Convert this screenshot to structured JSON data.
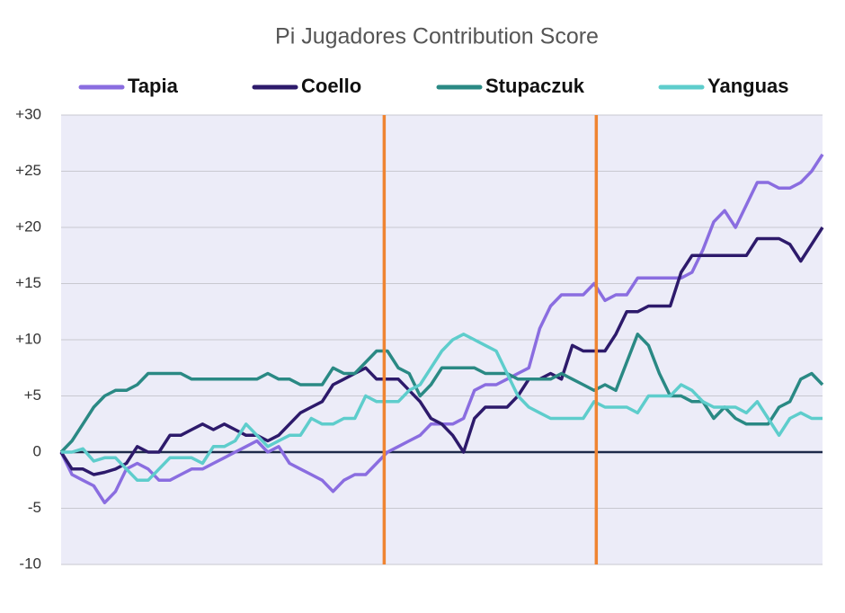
{
  "chart_data": {
    "type": "line",
    "title": "Pi Jugadores Contribution Score",
    "x": [
      0,
      1,
      2,
      3,
      4,
      5,
      6,
      7,
      8,
      9,
      10,
      11,
      12,
      13,
      14,
      15,
      16,
      17,
      18,
      19,
      20,
      21,
      22,
      23,
      24,
      25,
      26,
      27,
      28,
      29,
      30,
      31,
      32,
      33,
      34,
      35,
      36,
      37,
      38,
      39,
      40,
      41,
      42,
      43,
      44,
      45,
      46,
      47,
      48,
      49,
      50,
      51,
      52,
      53,
      54,
      55,
      56,
      57,
      58,
      59,
      60,
      61,
      62,
      63,
      64,
      65,
      66,
      67,
      68,
      69,
      70
    ],
    "xlim": [
      0,
      70
    ],
    "ylim": [
      -10,
      30
    ],
    "yticks": [
      {
        "value": -10,
        "label": "-10"
      },
      {
        "value": -5,
        "label": "-5"
      },
      0,
      {
        "value": 5,
        "label": "+5"
      },
      {
        "value": 10,
        "label": "+10"
      },
      {
        "value": 15,
        "label": "+15"
      },
      {
        "value": 20,
        "label": "+20"
      },
      {
        "value": 25,
        "label": "+25"
      },
      {
        "value": 30,
        "label": "+30"
      }
    ],
    "grid": true,
    "vlines": [
      29.7,
      49.2
    ],
    "vline_color": "#ef8432",
    "series": [
      {
        "name": "Tapia",
        "color": "#8a6de0",
        "values": [
          0,
          -2,
          -2.5,
          -3,
          -4.5,
          -3.5,
          -1.5,
          -1,
          -1.5,
          -2.5,
          -2.5,
          -2,
          -1.5,
          -1.5,
          -1,
          -0.5,
          0,
          0.5,
          1,
          0,
          0.5,
          -1,
          -1.5,
          -2,
          -2.5,
          -3.5,
          -2.5,
          -2,
          -2,
          -1,
          0,
          0.5,
          1,
          1.5,
          2.5,
          2.5,
          2.5,
          3,
          5.5,
          6,
          6,
          6.5,
          7,
          7.5,
          11,
          13,
          14,
          14,
          14,
          15,
          13.5,
          14,
          14,
          15.5,
          15.5,
          15.5,
          15.5,
          15.5,
          16,
          18,
          20.5,
          21.5,
          20,
          22,
          24,
          24,
          23.5,
          23.5,
          24,
          25,
          26.5
        ]
      },
      {
        "name": "Coello",
        "color": "#2d1a6b",
        "values": [
          0,
          -1.5,
          -1.5,
          -2,
          -1.8,
          -1.5,
          -1,
          0.5,
          0,
          0,
          1.5,
          1.5,
          2,
          2.5,
          2,
          2.5,
          2,
          1.5,
          1.5,
          1,
          1.5,
          2.5,
          3.5,
          4,
          4.5,
          6,
          6.5,
          7,
          7.5,
          6.5,
          6.5,
          6.5,
          5.5,
          4.5,
          3,
          2.5,
          1.5,
          0,
          3,
          4,
          4,
          4,
          5,
          6.5,
          6.5,
          7,
          6.5,
          9.5,
          9,
          9,
          9,
          10.5,
          12.5,
          12.5,
          13,
          13,
          13,
          16,
          17.5,
          17.5,
          17.5,
          17.5,
          17.5,
          17.5,
          19,
          19,
          19,
          18.5,
          17,
          18.5,
          20
        ]
      },
      {
        "name": "Stupaczuk",
        "color": "#2a8984",
        "values": [
          0,
          1,
          2.5,
          4,
          5,
          5.5,
          5.5,
          6,
          7,
          7,
          7,
          7,
          6.5,
          6.5,
          6.5,
          6.5,
          6.5,
          6.5,
          6.5,
          7,
          6.5,
          6.5,
          6,
          6,
          6,
          7.5,
          7,
          7,
          8,
          9,
          9,
          7.5,
          7,
          5,
          6,
          7.5,
          7.5,
          7.5,
          7.5,
          7,
          7,
          7,
          6.5,
          6.5,
          6.5,
          6.5,
          7,
          6.5,
          6,
          5.5,
          6,
          5.5,
          8,
          10.5,
          9.5,
          7,
          5,
          5,
          4.5,
          4.5,
          3,
          4,
          3,
          2.5,
          2.5,
          2.5,
          4,
          4.5,
          6.5,
          7,
          6
        ]
      },
      {
        "name": "Yanguas",
        "color": "#5ecdcc",
        "values": [
          0,
          0,
          0.3,
          -0.8,
          -0.5,
          -0.5,
          -1.5,
          -2.5,
          -2.5,
          -1.5,
          -0.5,
          -0.5,
          -0.5,
          -1,
          0.5,
          0.5,
          1,
          2.5,
          1.5,
          0.5,
          1,
          1.5,
          1.5,
          3,
          2.5,
          2.5,
          3,
          3,
          5,
          4.5,
          4.5,
          4.5,
          5.5,
          6,
          7.5,
          9,
          10,
          10.5,
          10,
          9.5,
          9,
          7,
          5,
          4,
          3.5,
          3,
          3,
          3,
          3,
          4.5,
          4,
          4,
          4,
          3.5,
          5,
          5,
          5,
          6,
          5.5,
          4.5,
          4,
          4,
          4,
          3.5,
          4.5,
          3,
          1.5,
          3,
          3.5,
          3,
          3
        ]
      }
    ]
  }
}
